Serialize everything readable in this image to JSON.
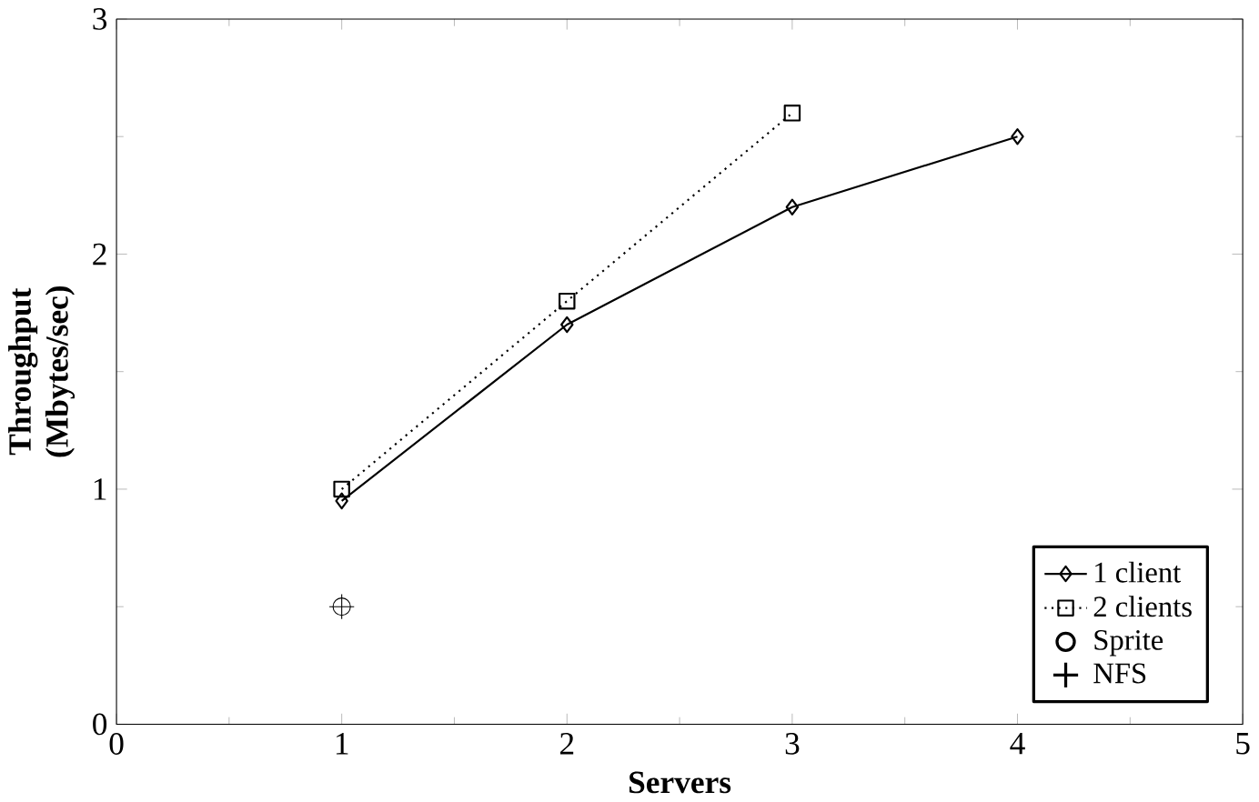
{
  "chart_data": {
    "type": "line",
    "xlabel": "Servers",
    "ylabel": "Throughput (Mbytes/sec)",
    "xlim": [
      0,
      5
    ],
    "ylim": [
      0,
      3
    ],
    "xticks": [
      0,
      1,
      2,
      3,
      4,
      5
    ],
    "yticks": [
      0,
      1,
      2,
      3
    ],
    "legend": "bottom right",
    "series": [
      {
        "name": "1 client",
        "color": "#000000",
        "x": [
          1,
          2,
          3,
          4
        ],
        "values": [
          0.95,
          1.7,
          2.2,
          2.5
        ],
        "marker": "diamond",
        "line_style": "solid"
      },
      {
        "name": "2 clients",
        "color": "#000000",
        "x": [
          1,
          2,
          3
        ],
        "values": [
          1.0,
          1.8,
          2.6
        ],
        "marker": "square",
        "line_style": "dotted"
      },
      {
        "name": "Sprite",
        "type": "scatter",
        "color": "#000000",
        "x": [
          1
        ],
        "values": [
          0.5
        ],
        "marker": "circle"
      },
      {
        "name": "NFS",
        "type": "scatter",
        "color": "#000000",
        "x": [
          1
        ],
        "values": [
          0.5
        ],
        "marker": "cross"
      }
    ]
  }
}
